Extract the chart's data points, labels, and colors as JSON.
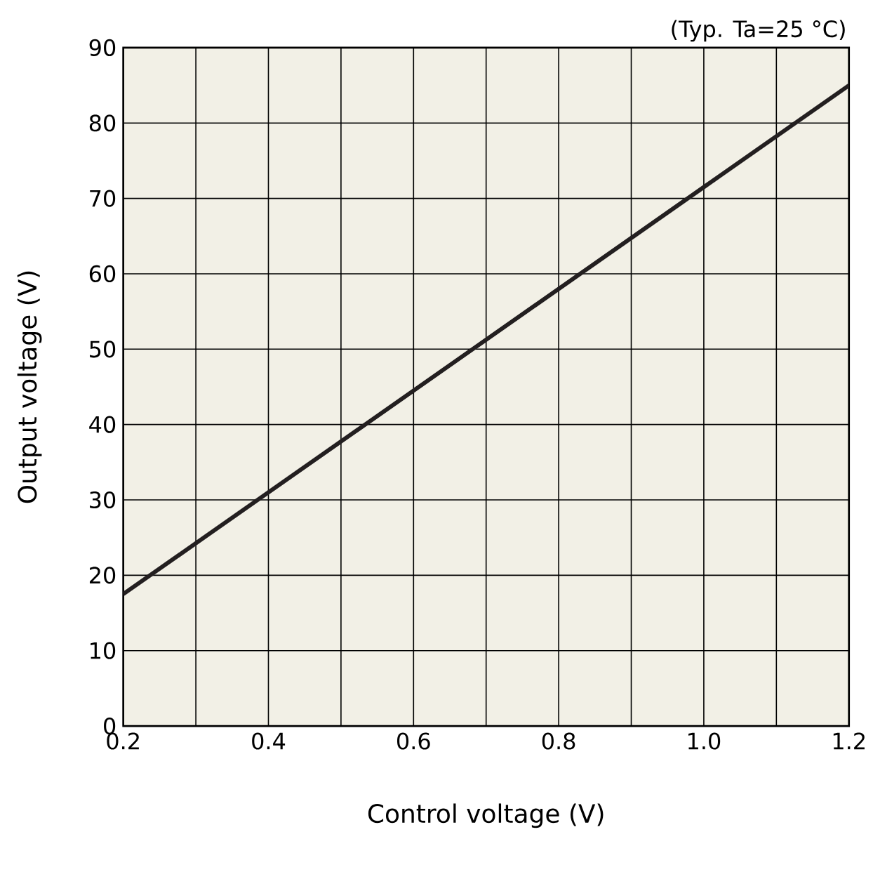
{
  "chart_data": {
    "type": "line",
    "xlabel": "Control voltage (V)",
    "ylabel": "Output voltage (V)",
    "annotations": [
      "(Typ. Ta=25 °C)"
    ],
    "x": [
      0.2,
      0.4,
      0.6,
      0.8,
      1.0,
      1.2
    ],
    "series": [
      {
        "color": "#231f20",
        "values": [
          17.5,
          31,
          44.5,
          58,
          71.5,
          85
        ]
      }
    ],
    "xlim": [
      0.2,
      1.2
    ],
    "xticks": [
      {
        "value": 0.2,
        "label": "0.2"
      },
      {
        "value": 0.3,
        "label": null
      },
      {
        "value": 0.4,
        "label": "0.4"
      },
      {
        "value": 0.5,
        "label": null
      },
      {
        "value": 0.6,
        "label": "0.6"
      },
      {
        "value": 0.7,
        "label": null
      },
      {
        "value": 0.8,
        "label": "0.8"
      },
      {
        "value": 0.9,
        "label": null
      },
      {
        "value": 1.0,
        "label": "1.0"
      },
      {
        "value": 1.1,
        "label": null
      },
      {
        "value": 1.2,
        "label": "1.2"
      }
    ],
    "ylim": [
      0,
      90
    ],
    "yticks": [
      0,
      10,
      20,
      30,
      40,
      50,
      60,
      70,
      80,
      90
    ],
    "grid": true,
    "marker": "none",
    "line_style": "solid"
  }
}
